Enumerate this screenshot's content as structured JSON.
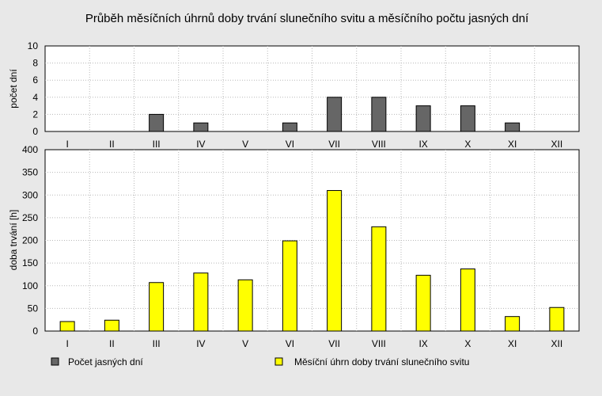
{
  "chart_data": {
    "type": "bar",
    "title": "Průběh měsíčních úhrnů doby trvání slunečního svitu a měsíčního počtu jasných dní",
    "categories": [
      "I",
      "II",
      "III",
      "IV",
      "V",
      "VI",
      "VII",
      "VIII",
      "IX",
      "X",
      "XI",
      "XII"
    ],
    "panels": [
      {
        "ylabel": "počet dní",
        "ylim": [
          0,
          10
        ],
        "yticks": [
          0,
          2,
          4,
          6,
          8,
          10
        ],
        "grid": true,
        "series": [
          {
            "name": "Počet jasných dní",
            "color": "#666666",
            "values": [
              0,
              0,
              2,
              1,
              0,
              1,
              4,
              4,
              3,
              3,
              1,
              0
            ]
          }
        ]
      },
      {
        "ylabel": "doba trvání [h]",
        "ylim": [
          0,
          400
        ],
        "yticks": [
          0,
          50,
          100,
          150,
          200,
          250,
          300,
          350,
          400
        ],
        "grid": true,
        "series": [
          {
            "name": "Měsíční úhrn doby trvání slunečního svitu",
            "color": "#ffff00",
            "values": [
              21,
              24,
              107,
              128,
              113,
              199,
              310,
              230,
              123,
              137,
              32,
              52
            ]
          }
        ]
      }
    ],
    "legend_position": "bottom"
  }
}
